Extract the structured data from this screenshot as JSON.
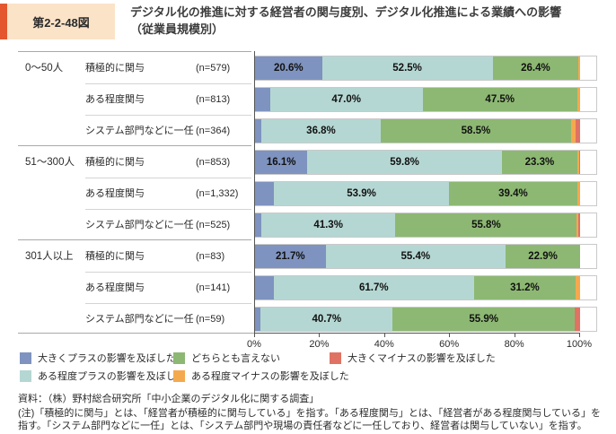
{
  "header": {
    "figure_number": "第2-2-48図",
    "title_line1": "デジタル化の推進に対する経営者の関与度別、デジタル化推進による業績への影響",
    "title_line2": "（従業員規模別）",
    "accent_color": "#e4572e",
    "figure_number_bg": "#fbe3c8"
  },
  "chart_data": {
    "type": "bar",
    "orientation": "horizontal",
    "stacked": true,
    "unit": "%",
    "xlim": [
      0,
      100
    ],
    "x_ticks": [
      "0%",
      "20%",
      "40%",
      "60%",
      "80%",
      "100%"
    ],
    "grid": false,
    "value_label_threshold": 10,
    "series_names": [
      "大きくプラスの影響を及ぼした",
      "ある程度プラスの影響を及ぼした",
      "どちらとも言えない",
      "ある程度マイナスの影響を及ぼした",
      "大きくマイナスの影響を及ぼした"
    ],
    "series_colors": [
      "#7e93bf",
      "#b5d7d3",
      "#8db873",
      "#f5a94e",
      "#e07264"
    ],
    "groups": [
      {
        "label": "0〜50人",
        "rows": [
          {
            "label": "積極的に関与",
            "n": "(n=579)",
            "values": [
              20.6,
              52.5,
              26.4,
              0.5,
              0.0
            ]
          },
          {
            "label": "ある程度関与",
            "n": "(n=813)",
            "values": [
              4.6,
              47.0,
              47.5,
              0.9,
              0.0
            ]
          },
          {
            "label": "システム部門などに一任",
            "n": "(n=364)",
            "values": [
              1.9,
              36.8,
              58.5,
              1.4,
              1.4
            ]
          }
        ]
      },
      {
        "label": "51〜300人",
        "rows": [
          {
            "label": "積極的に関与",
            "n": "(n=853)",
            "values": [
              16.1,
              59.8,
              23.3,
              0.6,
              0.2
            ]
          },
          {
            "label": "ある程度関与",
            "n": "(n=1,332)",
            "values": [
              5.8,
              53.9,
              39.4,
              0.9,
              0.0
            ]
          },
          {
            "label": "システム部門などに一任",
            "n": "(n=525)",
            "values": [
              1.9,
              41.3,
              55.8,
              0.4,
              0.6
            ]
          }
        ]
      },
      {
        "label": "301人以上",
        "rows": [
          {
            "label": "積極的に関与",
            "n": "(n=83)",
            "values": [
              21.7,
              55.4,
              22.9,
              0.0,
              0.0
            ]
          },
          {
            "label": "ある程度関与",
            "n": "(n=141)",
            "values": [
              5.7,
              61.7,
              31.2,
              1.4,
              0.0
            ]
          },
          {
            "label": "システム部門などに一任",
            "n": "(n=59)",
            "values": [
              1.7,
              40.7,
              55.9,
              0.0,
              1.7
            ]
          }
        ]
      }
    ]
  },
  "legend": {
    "items": [
      {
        "label": "大きくプラスの影響を及ぼした",
        "color": "#7e93bf",
        "row": 0,
        "col": 0
      },
      {
        "label": "どちらとも言えない",
        "color": "#8db873",
        "row": 0,
        "col": 1
      },
      {
        "label": "大きくマイナスの影響を及ぼした",
        "color": "#e07264",
        "row": 0,
        "col": 2
      },
      {
        "label": "ある程度プラスの影響を及ぼした",
        "color": "#b5d7d3",
        "row": 1,
        "col": 0
      },
      {
        "label": "ある程度マイナスの影響を及ぼした",
        "color": "#f5a94e",
        "row": 1,
        "col": 1
      }
    ]
  },
  "footer": {
    "source": "資料：（株）野村総合研究所「中小企業のデジタル化に関する調査」",
    "note": "(注)「積極的に関与」とは、「経営者が積極的に関与している」を指す。「ある程度関与」とは、「経営者がある程度関与している」を指す。「システム部門などに一任」とは、「システム部門や現場の責任者などに一任しており、経営者は関与していない」を指す。"
  }
}
